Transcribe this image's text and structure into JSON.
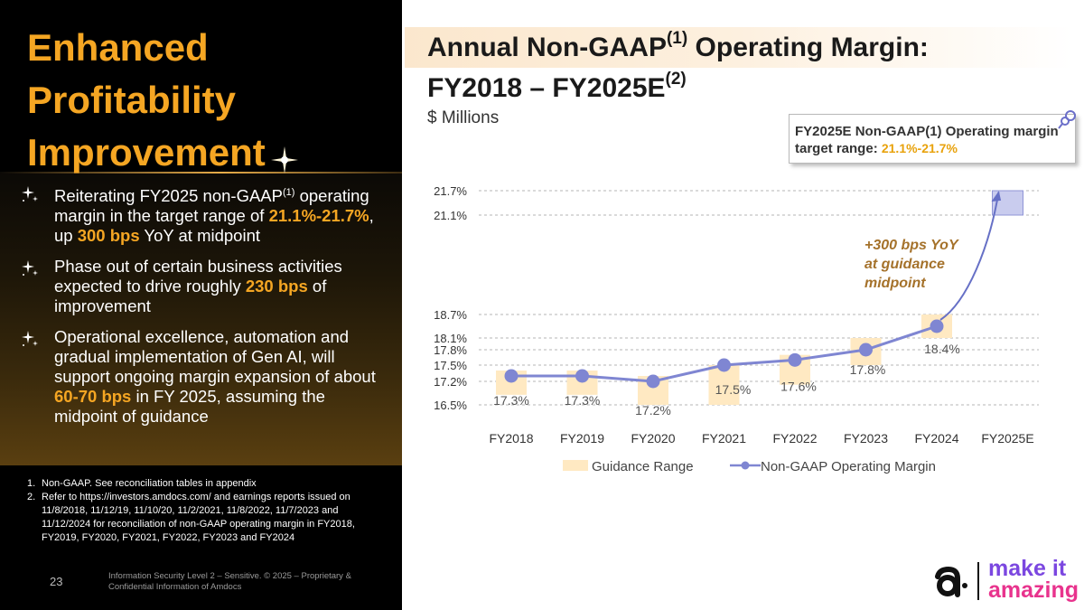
{
  "left": {
    "title_lines": [
      "Enhanced",
      "Profitability",
      "Improvement"
    ],
    "bullets": [
      {
        "text_a": "Reiterating FY2025 non-GAAP",
        "sup": "(1)",
        "text_b": " operating margin in the target range of ",
        "hl1": "21.1%-21.7%",
        "text_c": ", up ",
        "hl2": "300 bps",
        "text_d": " YoY at midpoint"
      },
      {
        "text_a": "Phase out of certain business activities expected to drive roughly ",
        "hl1": "230 bps",
        "text_b": " of improvement"
      },
      {
        "text_a": "Operational excellence, automation and gradual implementation of Gen AI, will support ongoing margin expansion of about ",
        "hl1": "60-70 bps",
        "text_b": " in FY 2025, assuming the midpoint of guidance"
      }
    ],
    "footnotes": [
      {
        "num": "1.",
        "text": "Non-GAAP. See reconciliation tables in appendix"
      },
      {
        "num": "2.",
        "text": "Refer to https://investors.amdocs.com/ and earnings reports issued on 11/8/2018, 11/12/19, 11/10/20, 11/2/2021, 11/8/2022, 11/7/2023 and 11/12/2024  for reconciliation of non-GAAP operating margin in FY2018, FY2019, FY2020, FY2021, FY2022, FY2023 and FY2024"
      }
    ],
    "page_number": "23",
    "confidential": "Information Security Level 2 – Sensitive. © 2025 – Proprietary & Confidential Information of Amdocs"
  },
  "right": {
    "title_a": "Annual Non-GAAP",
    "title_sup1": "(1)",
    "title_b": " Operating Margin:",
    "title_c": "FY2018 – FY2025E",
    "title_sup2": "(2)",
    "subtitle": "$ Millions",
    "target_box": {
      "text": "FY2025E Non-GAAP(1) Operating margin target range: ",
      "range": "21.1%-21.7%"
    }
  },
  "chart_data": {
    "type": "line",
    "categories": [
      "FY2018",
      "FY2019",
      "FY2020",
      "FY2021",
      "FY2022",
      "FY2023",
      "FY2024",
      "FY2025E"
    ],
    "series": [
      {
        "name": "Non-GAAP Operating Margin",
        "values": [
          17.3,
          17.3,
          17.2,
          17.5,
          17.6,
          17.8,
          18.4,
          null
        ]
      },
      {
        "name": "Guidance Range",
        "ranges": [
          [
            16.8,
            17.4
          ],
          [
            16.8,
            17.4
          ],
          [
            16.5,
            17.3
          ],
          [
            16.5,
            17.5
          ],
          [
            17.1,
            17.7
          ],
          [
            17.5,
            18.1
          ],
          [
            18.1,
            18.7
          ],
          [
            21.1,
            21.7
          ]
        ]
      }
    ],
    "value_labels": [
      "17.3%",
      "17.3%",
      "17.2%",
      "17.5%",
      "17.6%",
      "17.8%",
      "18.4%"
    ],
    "y_tick_values": [
      21.7,
      21.1,
      18.7,
      18.1,
      17.8,
      17.5,
      17.2,
      16.5
    ],
    "y_tick_labels": [
      "21.7%",
      "21.1%",
      "18.7%",
      "18.1%",
      "17.8%",
      "17.5%",
      "17.2%",
      "16.5%"
    ],
    "annotation_lines": [
      "+300 bps YoY",
      "at guidance",
      "midpoint"
    ],
    "annotation_arrow": {
      "from": 18.4,
      "to": 21.4
    },
    "legend": [
      "Guidance Range",
      "Non-GAAP Operating Margin"
    ],
    "ylim": [
      16.5,
      21.7
    ],
    "grid": true,
    "colors": {
      "range": "#FFE9C2",
      "range_last": "#C9CCEE",
      "line": "#7F86D2",
      "marker": "#7F86D2",
      "arrow": "#6670C6",
      "annotation": "#A5722B"
    }
  },
  "logo": {
    "line1": "make it",
    "line2": "amazing"
  },
  "colors": {
    "accent": "#F5A623",
    "title_dark": "#1a1a1a",
    "panel": "#000000"
  }
}
